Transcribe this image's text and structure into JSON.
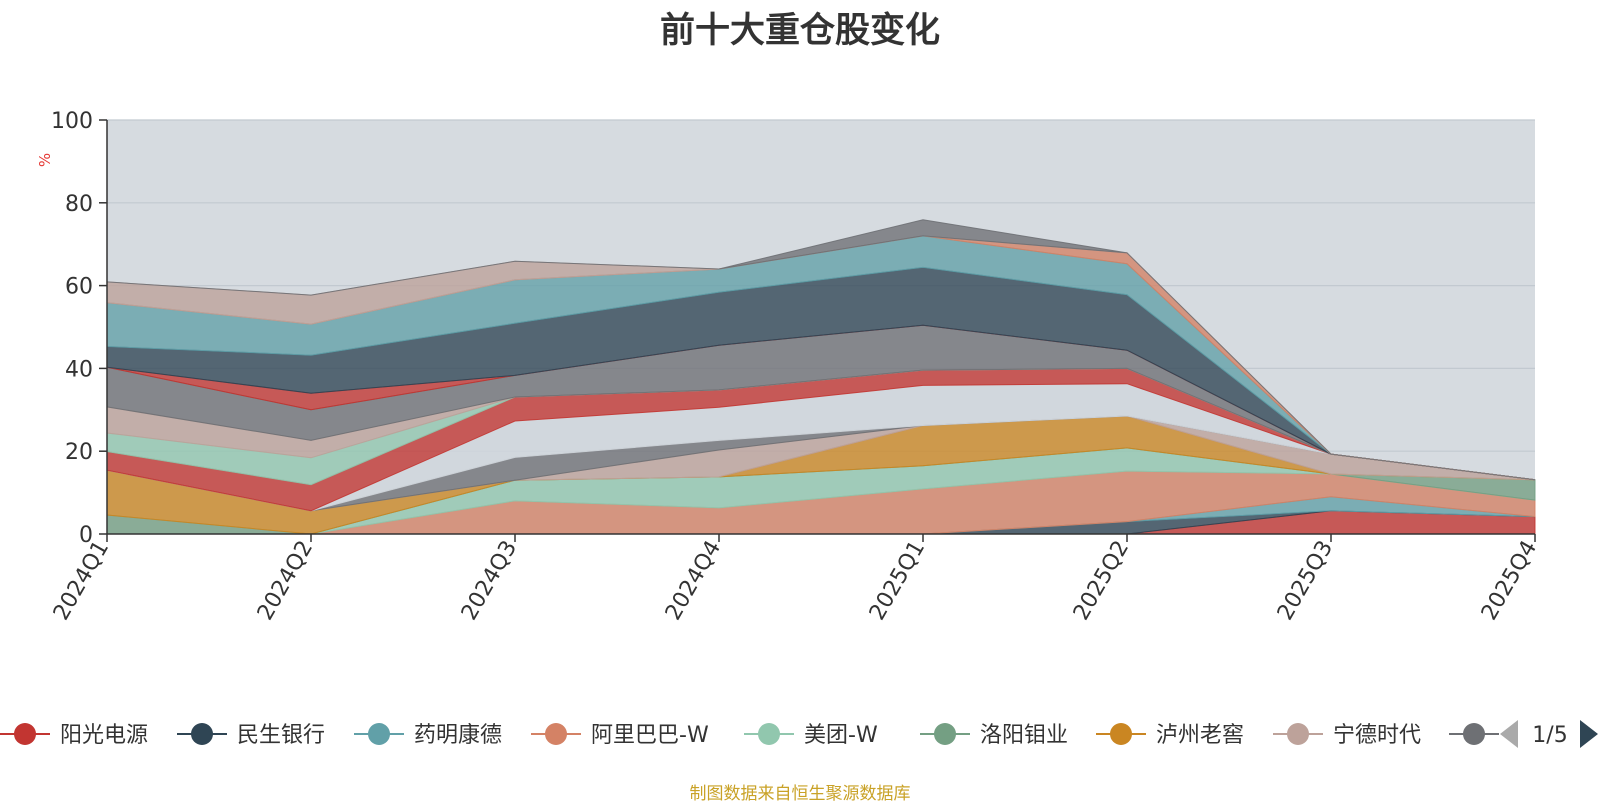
{
  "chart_data": {
    "type": "area",
    "title": "前十大重仓股变化",
    "ylabel": "%",
    "ylim": [
      0,
      100
    ],
    "yticks": [
      0,
      20,
      40,
      60,
      80,
      100
    ],
    "grid": true,
    "stacked": true,
    "categories": [
      "2024Q1",
      "2024Q2",
      "2024Q3",
      "2024Q4",
      "2025Q1",
      "2025Q2",
      "2025Q3",
      "2025Q4"
    ],
    "series": [
      {
        "name": "阳光电源",
        "color": "#c23531",
        "values": [
          0,
          0,
          0,
          0,
          0,
          0,
          5.6,
          4.2
        ]
      },
      {
        "name": "民生银行",
        "color": "#2f4554",
        "values": [
          0,
          0,
          0,
          0,
          0,
          3.0,
          0,
          0
        ]
      },
      {
        "name": "药明康德",
        "color": "#61a0a8",
        "values": [
          0,
          0,
          0,
          0,
          0,
          0,
          3.4,
          0
        ]
      },
      {
        "name": "阿里巴巴-W",
        "color": "#d48265",
        "values": [
          0,
          0,
          8.0,
          6.3,
          10.9,
          12.2,
          5.5,
          4.0
        ]
      },
      {
        "name": "美团-W",
        "color": "#91c7ae",
        "values": [
          0,
          0,
          5.0,
          7.5,
          5.6,
          5.6,
          0,
          0
        ]
      },
      {
        "name": "洛阳钼业",
        "color": "#749f83",
        "values": [
          4.6,
          0,
          0,
          0,
          0,
          0,
          0,
          4.9
        ]
      },
      {
        "name": "泸州老窖",
        "color": "#ca8622",
        "values": [
          10.8,
          5.6,
          0,
          0,
          9.7,
          7.7,
          0,
          0
        ]
      },
      {
        "name": "宁德时代",
        "color": "#bda29a",
        "values": [
          0,
          0,
          0,
          6.5,
          0,
          0,
          4.8,
          0
        ]
      },
      {
        "name": "",
        "color": "#6e7074",
        "values": [
          0,
          0,
          5.5,
          2.3,
          0,
          0,
          0,
          0
        ]
      },
      {
        "name": "",
        "color": "#d0d6dc",
        "values": [
          0,
          0,
          8.8,
          8.0,
          9.7,
          7.8,
          0,
          0
        ]
      },
      {
        "name": "",
        "color": "#c23531",
        "values": [
          4.5,
          6.3,
          5.8,
          4.2,
          3.7,
          3.7,
          0,
          0
        ]
      },
      {
        "name": "",
        "color": "#91c7ae",
        "values": [
          4.5,
          6.5,
          0,
          0,
          0,
          0,
          0,
          0
        ]
      },
      {
        "name": "",
        "color": "#bda29a",
        "values": [
          6.3,
          4.2,
          0,
          0,
          0,
          0,
          0,
          0
        ]
      },
      {
        "name": "",
        "color": "#6e7074",
        "values": [
          9.6,
          7.4,
          5.2,
          10.8,
          10.8,
          4.4,
          0,
          0
        ]
      },
      {
        "name": "",
        "color": "#c23531",
        "values": [
          0,
          4.0,
          0,
          0,
          0,
          0,
          0,
          0
        ]
      },
      {
        "name": "",
        "color": "#2f4554",
        "values": [
          5.0,
          9.2,
          12.6,
          12.8,
          14.0,
          13.4,
          0,
          0
        ]
      },
      {
        "name": "",
        "color": "#61a0a8",
        "values": [
          10.6,
          7.5,
          10.5,
          5.6,
          7.6,
          7.5,
          0,
          0
        ]
      },
      {
        "name": "",
        "color": "#d48265",
        "values": [
          0,
          0,
          0,
          0,
          0,
          2.6,
          0,
          0
        ]
      },
      {
        "name": "",
        "color": "#bda29a",
        "values": [
          5.0,
          7.0,
          4.5,
          0,
          0,
          0,
          0,
          0
        ]
      },
      {
        "name": "",
        "color": "#6e7074",
        "values": [
          0,
          0,
          0,
          0,
          3.9,
          0,
          0,
          0
        ]
      }
    ],
    "legend": {
      "placement": "bottom",
      "items": [
        {
          "name": "阳光电源",
          "color": "#c23531"
        },
        {
          "name": "民生银行",
          "color": "#2f4554"
        },
        {
          "name": "药明康德",
          "color": "#61a0a8"
        },
        {
          "name": "阿里巴巴-W",
          "color": "#d48265"
        },
        {
          "name": "美团-W",
          "color": "#91c7ae"
        },
        {
          "name": "洛阳钼业",
          "color": "#749f83"
        },
        {
          "name": "泸州老窖",
          "color": "#ca8622"
        },
        {
          "name": "宁德时代",
          "color": "#bda29a"
        },
        {
          "name": "",
          "color": "#6e7074"
        }
      ],
      "page_text": "1/5"
    }
  },
  "footer": "制图数据来自恒生聚源数据库",
  "colors": {
    "plot_background": "#d6dbe0",
    "gridline": "#c2c9d0",
    "axis": "#333333",
    "ylabel": "#e53935",
    "footer": "#c9a227"
  }
}
